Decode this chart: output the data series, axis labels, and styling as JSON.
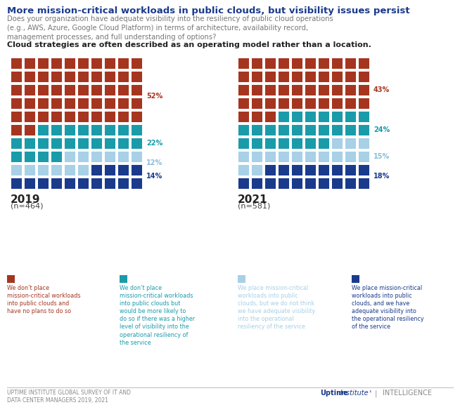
{
  "title": "More mission-critical workloads in public clouds, but visibility issues persist",
  "subtitle": "Does your organization have adequate visibility into the resiliency of public cloud operations\n(e.g., AWS, Azure, Google Cloud Platform) in terms of architecture, availability record,\nmanagement processes, and full understanding of options?",
  "tagline": "Cloud strategies are often described as an operating model rather than a location.",
  "values_2019": [
    52,
    22,
    12,
    14
  ],
  "values_2021": [
    43,
    24,
    15,
    18
  ],
  "colors": [
    "#A63520",
    "#1A9BAA",
    "#A8D0E6",
    "#1A3A8C"
  ],
  "pct_label_colors": [
    "#A63520",
    "#1A9BAA",
    "#8BBDD9",
    "#1A3A8C"
  ],
  "legend_colors": [
    "#A63520",
    "#1A9BAA",
    "#A8D0E6",
    "#1A3A8C"
  ],
  "legend_text_colors": [
    "#A63520",
    "#1A9BAA",
    "#A8D0E6",
    "#1A3A8C"
  ],
  "legend_texts": [
    "We don’t place\nmission-critical workloads\ninto public clouds and\nhave no plans to do so",
    "We don’t place\nmission-critical workloads\ninto public clouds but\nwould be more likely to\ndo so if there was a higher\nlevel of visibility into the\noperational resiliency of\nthe service",
    "We place mission-critical\nworkloads into public\nclouds, but we do not think\nwe have adequate visibility\ninto the operational\nresiliency of the service",
    "We place mission-critical\nworkloads into public\nclouds, and we have\nadequate visibility into\nthe operational resiliency\nof the service"
  ],
  "year_labels": [
    "2019",
    "2021"
  ],
  "n_labels": [
    "(n=464)",
    "(n=581)"
  ],
  "footer_left": "UPTIME INSTITUTE GLOBAL SURVEY OF IT AND\nDATA CENTER MANAGERS 2019, 2021",
  "footer_brand": "UptimeInstitute¹",
  "footer_intel": "INTELLIGENCE",
  "bg_color": "#FFFFFF",
  "title_color": "#1A3A8C",
  "subtitle_color": "#777777",
  "tagline_color": "#222222",
  "year_color": "#222222",
  "n_color": "#444444"
}
